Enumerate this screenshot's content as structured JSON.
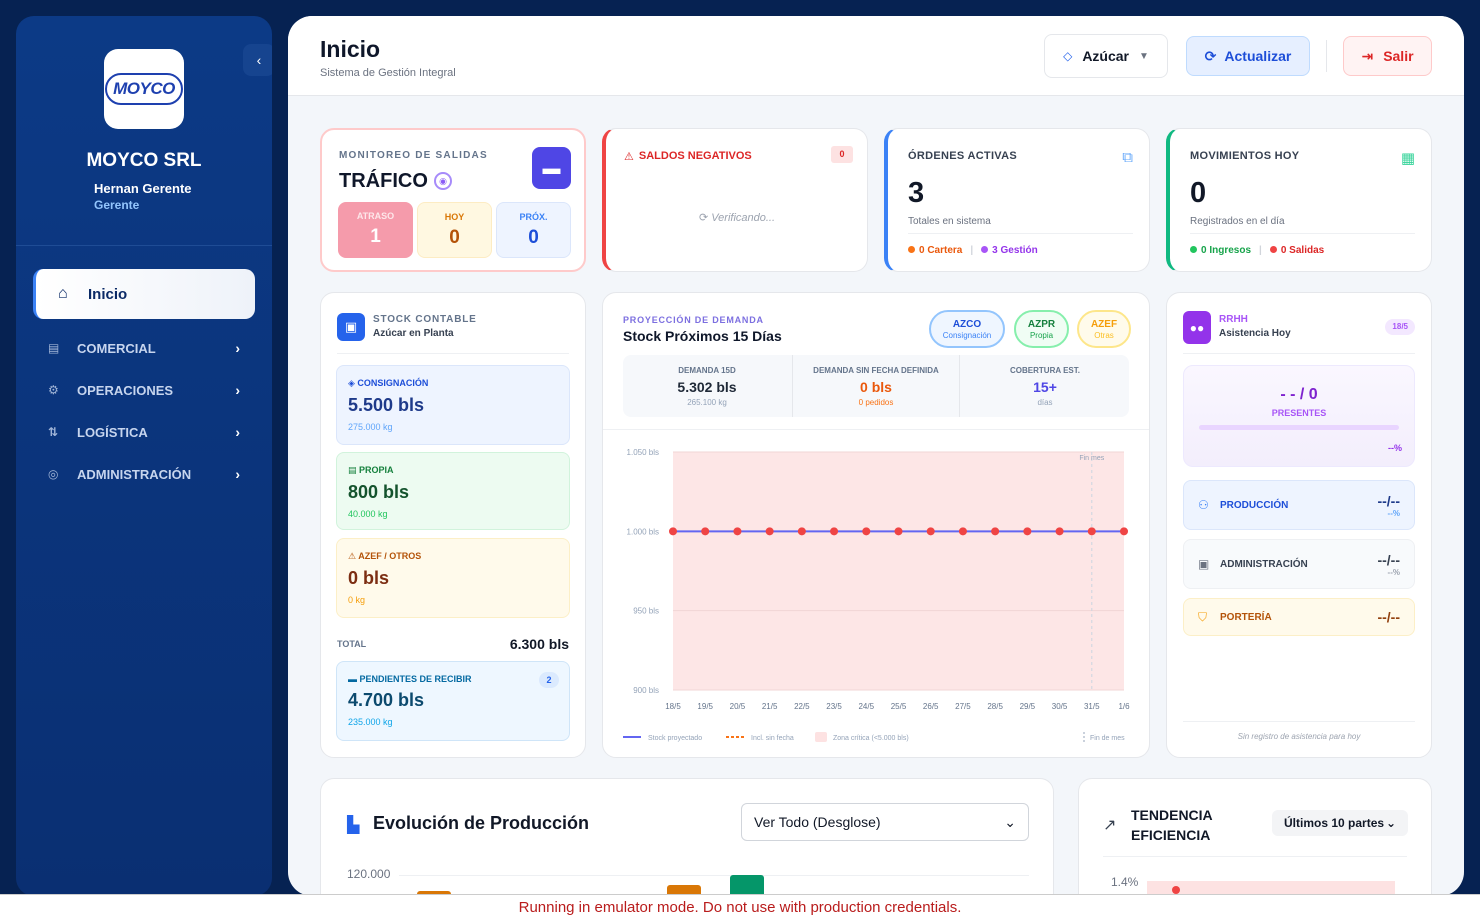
{
  "sidebar": {
    "company": "MOYCO SRL",
    "logo_text": "MOYCO",
    "user_name": "Hernan Gerente",
    "user_role": "Gerente",
    "home_label": "Inicio",
    "items": [
      {
        "label": "COMERCIAL",
        "icon": "store-icon"
      },
      {
        "label": "OPERACIONES",
        "icon": "operations-icon"
      },
      {
        "label": "LOGÍSTICA",
        "icon": "route-icon"
      },
      {
        "label": "ADMINISTRACIÓN",
        "icon": "admin-icon"
      }
    ]
  },
  "header": {
    "title": "Inicio",
    "subtitle": "Sistema de Gestión Integral",
    "product_selector": "Azúcar",
    "refresh_label": "Actualizar",
    "logout_label": "Salir"
  },
  "trafico": {
    "caption": "MONITOREO DE SALIDAS",
    "title": "TRÁFICO",
    "boxes": [
      {
        "label": "ATRASO",
        "value": "1"
      },
      {
        "label": "HOY",
        "value": "0"
      },
      {
        "label": "PRÓX.",
        "value": "0"
      }
    ]
  },
  "saldos": {
    "title": "SALDOS NEGATIVOS",
    "badge": "0",
    "status": "Verificando..."
  },
  "ordenes": {
    "title": "ÓRDENES ACTIVAS",
    "value": "3",
    "subtitle": "Totales en sistema",
    "foot_a": "0 Cartera",
    "foot_b": "3 Gestión"
  },
  "movimientos": {
    "title": "MOVIMIENTOS HOY",
    "value": "0",
    "subtitle": "Registrados en el día",
    "foot_a": "0 Ingresos",
    "foot_b": "0 Salidas"
  },
  "stock": {
    "caption": "STOCK CONTABLE",
    "subtitle": "Azúcar en Planta",
    "consignacion": {
      "label": "CONSIGNACIÓN",
      "value": "5.500 bls",
      "kg": "275.000 kg"
    },
    "propia": {
      "label": "PROPIA",
      "value": "800 bls",
      "kg": "40.000 kg"
    },
    "azef": {
      "label": "AZEF / OTROS",
      "value": "0 bls",
      "kg": "0 kg"
    },
    "total_label": "TOTAL",
    "total_value": "6.300 bls",
    "pendientes": {
      "label": "PENDIENTES DE RECIBIR",
      "badge": "2",
      "value": "4.700 bls",
      "kg": "235.000 kg"
    }
  },
  "proyeccion": {
    "caption": "PROYECCIÓN DE DEMANDA",
    "title": "Stock Próximos 15 Días",
    "pills": [
      {
        "code": "AZCO",
        "name": "Consignación",
        "color": "#2563eb"
      },
      {
        "code": "AZPR",
        "name": "Propia",
        "color": "#16a34a"
      },
      {
        "code": "AZEF",
        "name": "Otras",
        "color": "#d97706"
      }
    ],
    "stats": [
      {
        "label": "DEMANDA 15D",
        "value": "5.302 bls",
        "sub": "265.100 kg"
      },
      {
        "label": "DEMANDA SIN FECHA DEFINIDA",
        "value": "0 bls",
        "sub": "0 pedidos"
      },
      {
        "label": "COBERTURA EST.",
        "value": "15+",
        "sub": "días"
      }
    ]
  },
  "chart_data": {
    "type": "line",
    "x": [
      "18/5",
      "19/5",
      "20/5",
      "21/5",
      "22/5",
      "23/5",
      "24/5",
      "25/5",
      "26/5",
      "27/5",
      "28/5",
      "29/5",
      "30/5",
      "31/5",
      "1/6"
    ],
    "series": [
      {
        "name": "Stock proyectado",
        "values": [
          1000,
          1000,
          1000,
          1000,
          1000,
          1000,
          1000,
          1000,
          1000,
          1000,
          1000,
          1000,
          1000,
          1000,
          1000
        ]
      }
    ],
    "ylim": [
      900,
      1050
    ],
    "yticks": [
      "1.050 bls",
      "1.000 bls",
      "950 bls",
      "900 bls"
    ],
    "annotation": "Fin mes",
    "legend": [
      "Stock proyectado",
      "Incl. sin fecha",
      "Zona crítica (<5.000 bls)",
      "Fin de mes"
    ],
    "colors": {
      "line": "#6366f1",
      "points": "#ef4444",
      "zone": "#fde2e2"
    }
  },
  "rrhh": {
    "caption": "RRHH",
    "subtitle": "Asistencia Hoy",
    "date": "18/5",
    "present_value": "- - / 0",
    "present_label": "PRESENTES",
    "present_pct": "--%",
    "rows": [
      {
        "label": "PRODUCCIÓN",
        "value": "--/--",
        "pct": "--%"
      },
      {
        "label": "ADMINISTRACIÓN",
        "value": "--/--",
        "pct": "--%"
      },
      {
        "label": "PORTERÍA",
        "value": "--/--"
      }
    ],
    "footer": "Sin registro de asistencia para hoy"
  },
  "produccion": {
    "title": "Evolución de Producción",
    "filter": "Ver Todo (Desglose)",
    "ytick": "120.000"
  },
  "tendencia": {
    "title_1": "TENDENCIA",
    "title_2": "EFICIENCIA",
    "filter": "Últimos 10 partes",
    "ytick": "1.4%"
  },
  "banner": "Running in emulator mode. Do not use with production credentials."
}
